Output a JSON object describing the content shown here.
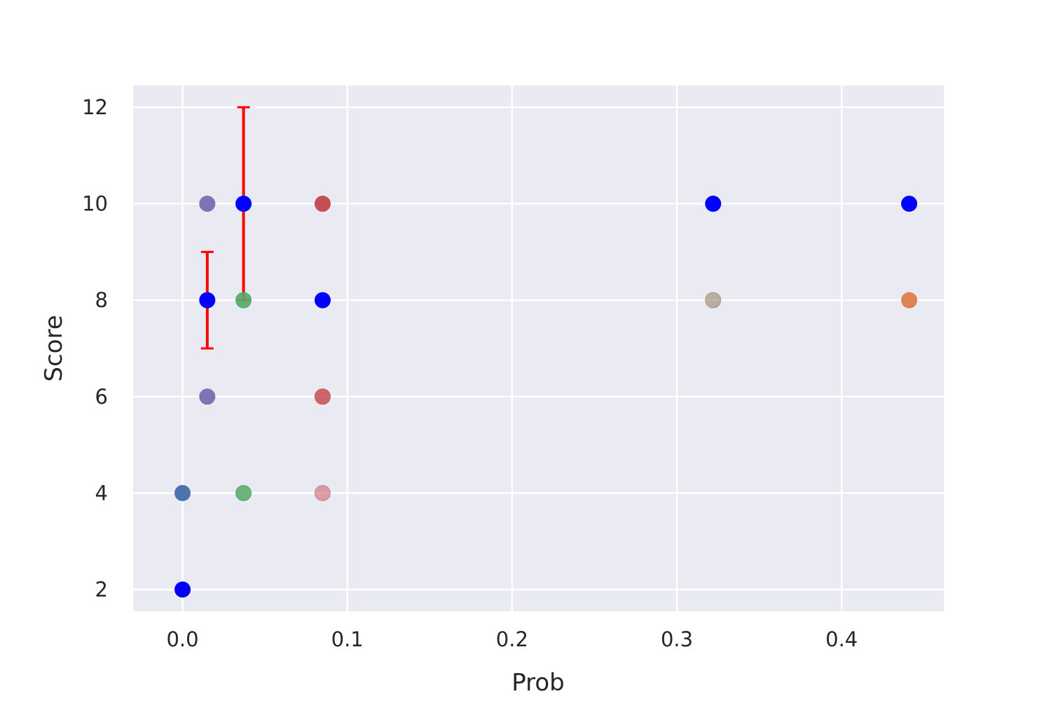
{
  "chart_data": {
    "type": "scatter",
    "title": "",
    "xlabel": "Prob",
    "ylabel": "Score",
    "xlim": [
      -0.03,
      0.462
    ],
    "ylim": [
      1.55,
      12.45
    ],
    "grid": true,
    "background": "#eaeaf2",
    "x_ticks": [
      {
        "value": 0.0,
        "label": "0.0"
      },
      {
        "value": 0.1,
        "label": "0.1"
      },
      {
        "value": 0.2,
        "label": "0.2"
      },
      {
        "value": 0.3,
        "label": "0.3"
      },
      {
        "value": 0.4,
        "label": "0.4"
      }
    ],
    "y_ticks": [
      {
        "value": 2,
        "label": "2"
      },
      {
        "value": 4,
        "label": "4"
      },
      {
        "value": 6,
        "label": "6"
      },
      {
        "value": 8,
        "label": "8"
      },
      {
        "value": 10,
        "label": "10"
      },
      {
        "value": 12,
        "label": "12"
      }
    ],
    "points": [
      {
        "x": 0.0,
        "y": 4,
        "color": "#4c72b0",
        "opacity": 1.0
      },
      {
        "x": 0.015,
        "y": 10,
        "color": "#8172b3",
        "opacity": 1.0
      },
      {
        "x": 0.015,
        "y": 6,
        "color": "#8172b3",
        "opacity": 1.0
      },
      {
        "x": 0.037,
        "y": 8,
        "color": "#55a868",
        "opacity": 0.9
      },
      {
        "x": 0.037,
        "y": 4,
        "color": "#55a868",
        "opacity": 0.85
      },
      {
        "x": 0.085,
        "y": 10,
        "color": "#c44e52",
        "opacity": 1.0
      },
      {
        "x": 0.085,
        "y": 6,
        "color": "#c44e52",
        "opacity": 0.85
      },
      {
        "x": 0.085,
        "y": 4,
        "color": "#c44e52",
        "opacity": 0.5
      },
      {
        "x": 0.322,
        "y": 8,
        "color": "#937860",
        "opacity": 0.55
      },
      {
        "x": 0.441,
        "y": 8,
        "color": "#dd8452",
        "opacity": 1.0
      }
    ],
    "mean_points": [
      {
        "x": 0.0,
        "y": 2,
        "color": "#0000ff"
      },
      {
        "x": 0.015,
        "y": 8,
        "color": "#0000ff"
      },
      {
        "x": 0.037,
        "y": 10,
        "color": "#0000ff"
      },
      {
        "x": 0.085,
        "y": 8,
        "color": "#0000ff"
      },
      {
        "x": 0.322,
        "y": 10,
        "color": "#0000ff"
      },
      {
        "x": 0.441,
        "y": 10,
        "color": "#0000ff"
      }
    ],
    "error_bars": [
      {
        "x": 0.015,
        "low": 7,
        "high": 9,
        "color": "#ff0000"
      },
      {
        "x": 0.037,
        "low": 8,
        "high": 12,
        "color": "#ff0000"
      }
    ]
  }
}
